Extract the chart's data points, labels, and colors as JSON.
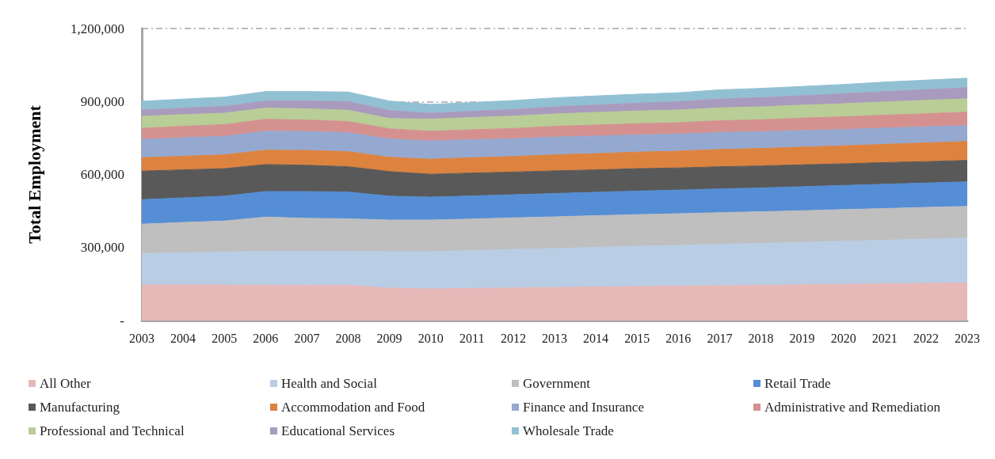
{
  "chart_data": {
    "type": "area",
    "stacked": true,
    "ylabel": "Total Employment",
    "categories": [
      "2003",
      "2004",
      "2005",
      "2006",
      "2007",
      "2008",
      "2009",
      "2010",
      "2011",
      "2012",
      "2013",
      "2014",
      "2015",
      "2016",
      "2017",
      "2018",
      "2019",
      "2020",
      "2021",
      "2022",
      "2023"
    ],
    "ylim": [
      0,
      1200000
    ],
    "yticks": [
      {
        "value": 0,
        "label": "-"
      },
      {
        "value": 300000,
        "label": "300,000"
      },
      {
        "value": 600000,
        "label": "600,000"
      },
      {
        "value": 900000,
        "label": "900,000"
      },
      {
        "value": 1200000,
        "label": "1,200,000"
      }
    ],
    "grid": "y",
    "legend": "bottom",
    "series": [
      {
        "name": "All Other",
        "color": "#e6b8b7",
        "values": [
          146000,
          146000,
          146000,
          145000,
          145000,
          145000,
          133000,
          130000,
          132000,
          134000,
          136000,
          138000,
          140000,
          142000,
          143000,
          145000,
          147000,
          149000,
          151000,
          153000,
          155000
        ]
      },
      {
        "name": "Health and Social",
        "color": "#b9cde5",
        "values": [
          130000,
          132000,
          135000,
          140000,
          140000,
          140000,
          150000,
          153000,
          155000,
          158000,
          160000,
          163000,
          165000,
          167000,
          170000,
          172000,
          174000,
          177000,
          179000,
          182000,
          184000
        ]
      },
      {
        "name": "Government",
        "color": "#bfbfbf",
        "values": [
          120000,
          125000,
          128000,
          140000,
          135000,
          133000,
          130000,
          130000,
          130000,
          130000,
          130000,
          130000,
          130000,
          130000,
          130000,
          130000,
          130000,
          130000,
          130000,
          130000,
          130000
        ]
      },
      {
        "name": "Retail Trade",
        "color": "#558ed5",
        "values": [
          101000,
          101000,
          102000,
          105000,
          110000,
          110000,
          98000,
          94000,
          95000,
          95000,
          96000,
          96000,
          97000,
          97000,
          98000,
          98000,
          99000,
          99000,
          100000,
          100000,
          101000
        ]
      },
      {
        "name": "Manufacturing",
        "color": "#595959",
        "values": [
          117000,
          115000,
          113000,
          111000,
          108000,
          104000,
          101000,
          94000,
          94000,
          93000,
          93000,
          92000,
          92000,
          91000,
          91000,
          90000,
          90000,
          89000,
          89000,
          88000,
          88000
        ]
      },
      {
        "name": "Accommodation and Food",
        "color": "#dd8340",
        "values": [
          55000,
          56000,
          57000,
          59000,
          61000,
          62000,
          59000,
          62000,
          63000,
          64000,
          66000,
          67000,
          68000,
          69000,
          71000,
          72000,
          73000,
          74000,
          75000,
          77000,
          78000
        ]
      },
      {
        "name": "Finance and Insurance",
        "color": "#95a9d0",
        "values": [
          75000,
          76000,
          76000,
          78000,
          78000,
          78000,
          75000,
          75000,
          74000,
          73000,
          73000,
          72000,
          71000,
          70000,
          70000,
          69000,
          68000,
          67000,
          67000,
          66000,
          65000
        ]
      },
      {
        "name": "Administrative and Remediation",
        "color": "#d49190",
        "values": [
          46000,
          47000,
          48000,
          49000,
          47000,
          46000,
          42000,
          40000,
          41000,
          42000,
          44000,
          45000,
          46000,
          47000,
          48000,
          49000,
          51000,
          52000,
          53000,
          54000,
          55000
        ]
      },
      {
        "name": "Professional and Technical",
        "color": "#b9cd96",
        "values": [
          49000,
          48000,
          47000,
          46000,
          46000,
          46000,
          42000,
          50000,
          50000,
          51000,
          51000,
          52000,
          52000,
          52000,
          53000,
          53000,
          53000,
          54000,
          54000,
          55000,
          55000
        ]
      },
      {
        "name": "Educational Services",
        "color": "#a99bbd",
        "values": [
          26000,
          27000,
          28000,
          29000,
          32000,
          36000,
          33000,
          24000,
          26000,
          27000,
          29000,
          31000,
          32000,
          34000,
          36000,
          38000,
          39000,
          41000,
          43000,
          44000,
          46000
        ]
      },
      {
        "name": "Wholesale Trade",
        "color": "#92c0d3",
        "values": [
          36000,
          37000,
          38000,
          39000,
          39000,
          39000,
          39000,
          36000,
          36000,
          37000,
          37000,
          37000,
          37000,
          37000,
          38000,
          38000,
          38000,
          38000,
          39000,
          39000,
          39000
        ]
      }
    ]
  }
}
